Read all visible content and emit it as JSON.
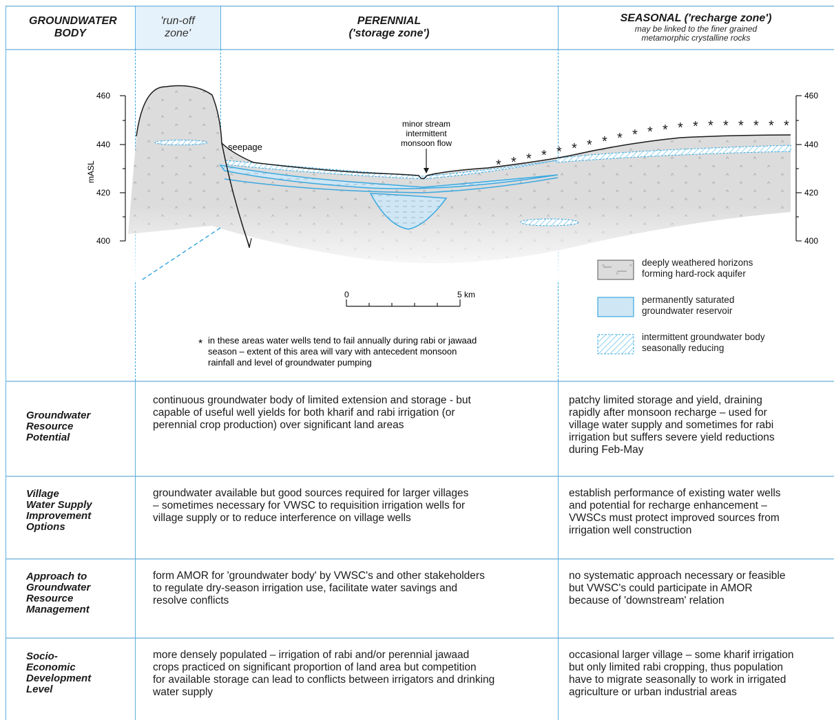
{
  "headers": {
    "col1": "GROUNDWATER BODY",
    "col2": "'run-off zone'",
    "col3_title": "PERENNIAL",
    "col3_sub": "('storage zone')",
    "col4_title": "SEASONAL ('recharge zone')",
    "col4_sub": "may be linked to the finer grained metamorphic crystalline rocks"
  },
  "diagram": {
    "axis_label": "mASL",
    "left_ticks": [
      "460",
      "440",
      "420",
      "400"
    ],
    "right_ticks": [
      "460",
      "440",
      "420",
      "400"
    ],
    "seepage_label": "seepage",
    "stream_label": [
      "minor stream",
      "intermittent",
      "monsoon flow"
    ],
    "scale_start": "0",
    "scale_end": "5 km",
    "note_marker": "*",
    "note_text": [
      "in these areas water wells tend to fail annually during rabi or jawaad",
      "season – extent of this area will vary with antecedent monsoon",
      "rainfall and level of groundwater pumping"
    ],
    "legend": [
      {
        "line1": "deeply weathered horizons",
        "line2": "forming hard-rock aquifer"
      },
      {
        "line1": "permanently saturated",
        "line2": "groundwater reservoir"
      },
      {
        "line1": "intermittent groundwater body",
        "line2": "seasonally reducing"
      }
    ]
  },
  "rows": [
    {
      "label": [
        "Groundwater",
        "Resource",
        "Potential"
      ],
      "perennial": [
        "continuous groundwater body of limited extension and storage - but",
        "capable of useful well yields for both kharif and rabi irrigation (or",
        "perennial crop production) over significant land areas"
      ],
      "seasonal": [
        "patchy limited storage and yield, draining",
        "rapidly after monsoon recharge – used for",
        "village water supply and sometimes for rabi",
        "irrigation but suffers severe yield reductions",
        "during Feb-May"
      ]
    },
    {
      "label": [
        "Village",
        "Water Supply",
        "Improvement",
        "Options"
      ],
      "perennial": [
        "groundwater available but good sources required for larger villages",
        "– sometimes necessary for VWSC to requisition irrigation wells for",
        "village supply or to reduce interference on village wells"
      ],
      "seasonal": [
        "establish performance of existing water wells",
        "and potential for recharge enhancement –",
        "VWSCs must protect improved sources from",
        "irrigation well construction"
      ]
    },
    {
      "label": [
        "Approach to",
        "Groundwater",
        "Resource",
        "Management"
      ],
      "perennial": [
        "form AMOR for 'groundwater body' by VWSC's and other stakeholders",
        "to regulate dry-season irrigation use, facilitate water savings and",
        "resolve conflicts"
      ],
      "seasonal": [
        "no systematic approach necessary or feasible",
        "but VWSC's could participate in AMOR",
        "because of 'downstream' relation"
      ]
    },
    {
      "label": [
        "Socio-",
        "Economic",
        "Development",
        "Level"
      ],
      "perennial": [
        "more densely populated – irrigation of rabi and/or perennial jawaad",
        "crops practiced on significant proportion of  land area but competition",
        "for available storage can lead to conflicts between irrigators and drinking",
        "water supply"
      ],
      "seasonal": [
        "occasional larger village – some kharif irrigation",
        "but only limited rabi cropping, thus population",
        "have to migrate seasonally to work in irrigated",
        "agriculture or urban industrial areas"
      ]
    }
  ],
  "colors": {
    "grid": "#9fcbe6",
    "saturated": "#cfe6f4",
    "weathered": "#d9d9d9",
    "runoff_header": "#e6f2fb"
  }
}
